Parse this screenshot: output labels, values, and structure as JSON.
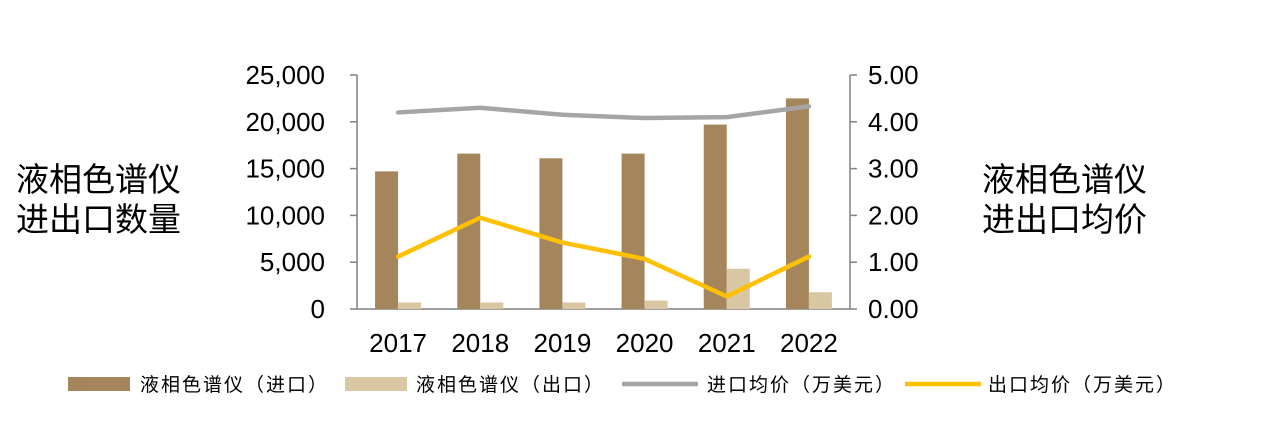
{
  "chart_data": {
    "type": "bar",
    "categories": [
      "2017",
      "2018",
      "2019",
      "2020",
      "2021",
      "2022"
    ],
    "series": [
      {
        "name": "液相色谱仪（进口）",
        "kind": "bar",
        "axis": "left",
        "color": "#a5855b",
        "values": [
          14700,
          16600,
          16100,
          16600,
          19700,
          22500
        ]
      },
      {
        "name": "液相色谱仪（出口）",
        "kind": "bar",
        "axis": "left",
        "color": "#d8c7a2",
        "values": [
          700,
          700,
          700,
          900,
          4300,
          1800
        ]
      },
      {
        "name": "进口均价（万美元）",
        "kind": "line",
        "axis": "right",
        "color": "#a5a5a5",
        "values": [
          4.2,
          4.3,
          4.15,
          4.08,
          4.1,
          4.33
        ]
      },
      {
        "name": "出口均价（万美元）",
        "kind": "line",
        "axis": "right",
        "color": "#ffc000",
        "values": [
          1.12,
          1.95,
          1.42,
          1.07,
          0.27,
          1.12
        ]
      }
    ],
    "y_left": {
      "min": 0,
      "max": 25000,
      "ticks": [
        "0",
        "5,000",
        "10,000",
        "15,000",
        "20,000",
        "25,000"
      ],
      "label_lines": [
        "液相色谱仪",
        "进出口数量"
      ]
    },
    "y_right": {
      "min": 0,
      "max": 5,
      "ticks": [
        "0.00",
        "1.00",
        "2.00",
        "3.00",
        "4.00",
        "5.00"
      ],
      "label_lines": [
        "液相色谱仪",
        "进出口均价"
      ]
    },
    "legend_position": "bottom",
    "grid": false
  }
}
